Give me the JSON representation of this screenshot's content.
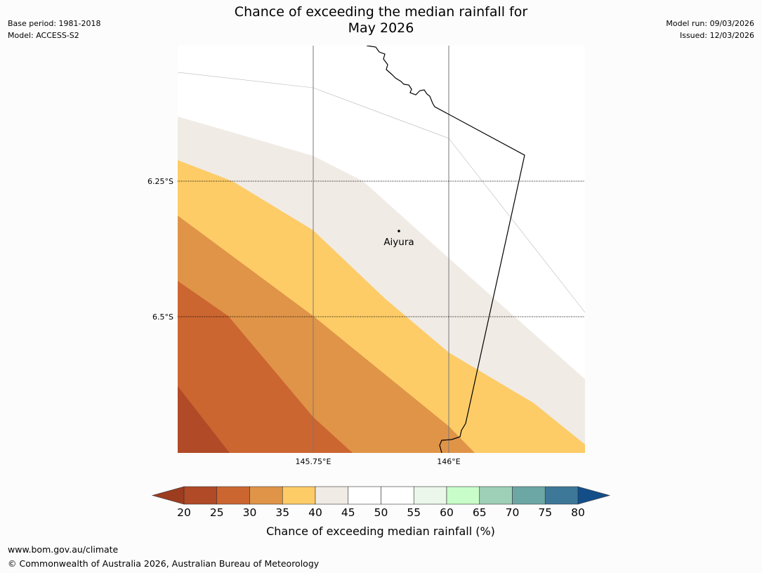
{
  "header": {
    "title_line1": "Chance of exceeding the median rainfall for",
    "title_line2": "May 2026",
    "base_period": "Base period: 1981-2018",
    "model": "Model: ACCESS-S2",
    "model_run": "Model run: 09/03/2026",
    "issued": "Issued: 12/03/2026"
  },
  "map": {
    "lat_labels": [
      "6.25°S",
      "6.5°S"
    ],
    "lon_labels": [
      "145.75°E",
      "146°E"
    ],
    "place": {
      "name": "Aiyura"
    },
    "band_colors": [
      "#b04a27",
      "#cc6631",
      "#e09448",
      "#fdcc67",
      "#f0ebe5",
      "#ffffff"
    ]
  },
  "colorbar": {
    "ticks": [
      "20",
      "25",
      "30",
      "35",
      "40",
      "45",
      "50",
      "55",
      "60",
      "65",
      "70",
      "75",
      "80"
    ],
    "colors": [
      "#9c3d20",
      "#b04a27",
      "#cc6631",
      "#e09448",
      "#fdcc67",
      "#f0ebe5",
      "#ffffff",
      "#ffffff",
      "#eaf7ea",
      "#c8fcc8",
      "#9ed0b8",
      "#6ca7a6",
      "#3e7899",
      "#134e89"
    ],
    "title": "Chance of exceeding median rainfall (%)"
  },
  "footer": {
    "url": "www.bom.gov.au/climate",
    "copyright": "© Commonwealth of Australia 2026, Australian Bureau of Meteorology"
  }
}
